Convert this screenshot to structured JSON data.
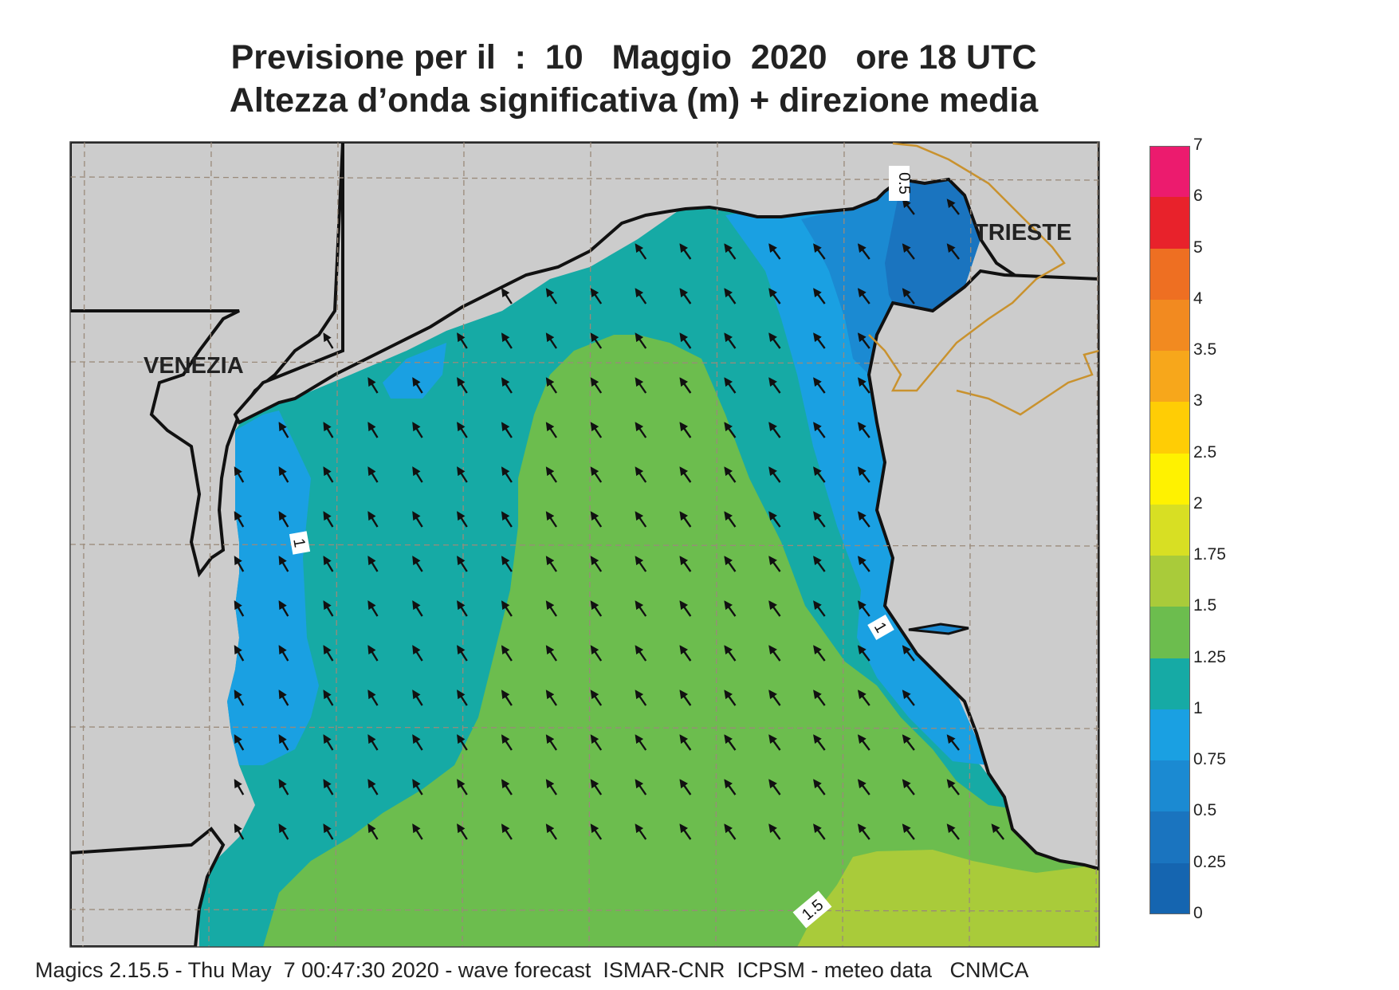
{
  "title": {
    "line1": "Previsione per il  :  10   Maggio  2020   ore 18 UTC",
    "line2": "Altezza d’onda significativa (m) + direzione media"
  },
  "map": {
    "cities": [
      {
        "name": "VENEZIA"
      },
      {
        "name": "TRIESTE"
      }
    ],
    "contour_labels": [
      "0.5",
      "1",
      "1",
      "1.5"
    ],
    "wave_direction": "NNW (arrows pointing toward the north-west)",
    "colors": {
      "land": "#cccccc",
      "band_0_25_0_5": "#1a74bf",
      "band_0_5_0_75": "#1b8ad2",
      "band_0_75_1": "#1aa0e2",
      "band_1_1_25": "#16aaa5",
      "band_1_25_1_5": "#6cbd4e",
      "band_1_5_1_75": "#a9cb3a",
      "border": "#c9922e"
    }
  },
  "colorbar": {
    "ticks": [
      "7",
      "6",
      "5",
      "4",
      "3.5",
      "3",
      "2.5",
      "2",
      "1.75",
      "1.5",
      "1.25",
      "1",
      "0.75",
      "0.5",
      "0.25",
      "0"
    ],
    "segments": [
      {
        "from": "6",
        "to": "7",
        "color": "#ec1b6e"
      },
      {
        "from": "5",
        "to": "6",
        "color": "#e8222b"
      },
      {
        "from": "4",
        "to": "5",
        "color": "#ee6f22"
      },
      {
        "from": "3.5",
        "to": "4",
        "color": "#f28a20"
      },
      {
        "from": "3",
        "to": "3.5",
        "color": "#f7a71b"
      },
      {
        "from": "2.5",
        "to": "3",
        "color": "#ffcd05"
      },
      {
        "from": "2",
        "to": "2.5",
        "color": "#fff200"
      },
      {
        "from": "1.75",
        "to": "2",
        "color": "#d8df23"
      },
      {
        "from": "1.5",
        "to": "1.75",
        "color": "#a9cb3a"
      },
      {
        "from": "1.25",
        "to": "1.5",
        "color": "#6cbd4e"
      },
      {
        "from": "1",
        "to": "1.25",
        "color": "#16aaa5"
      },
      {
        "from": "0.75",
        "to": "1",
        "color": "#1aa0e2"
      },
      {
        "from": "0.5",
        "to": "0.75",
        "color": "#1b8ad2"
      },
      {
        "from": "0.25",
        "to": "0.5",
        "color": "#1a74bf"
      },
      {
        "from": "0",
        "to": "0.25",
        "color": "#1565b0"
      }
    ]
  },
  "footer": "Magics 2.15.5 - Thu May  7 00:47:30 2020 - wave forecast  ISMAR-CNR  ICPSM - meteo data   CNMCA"
}
